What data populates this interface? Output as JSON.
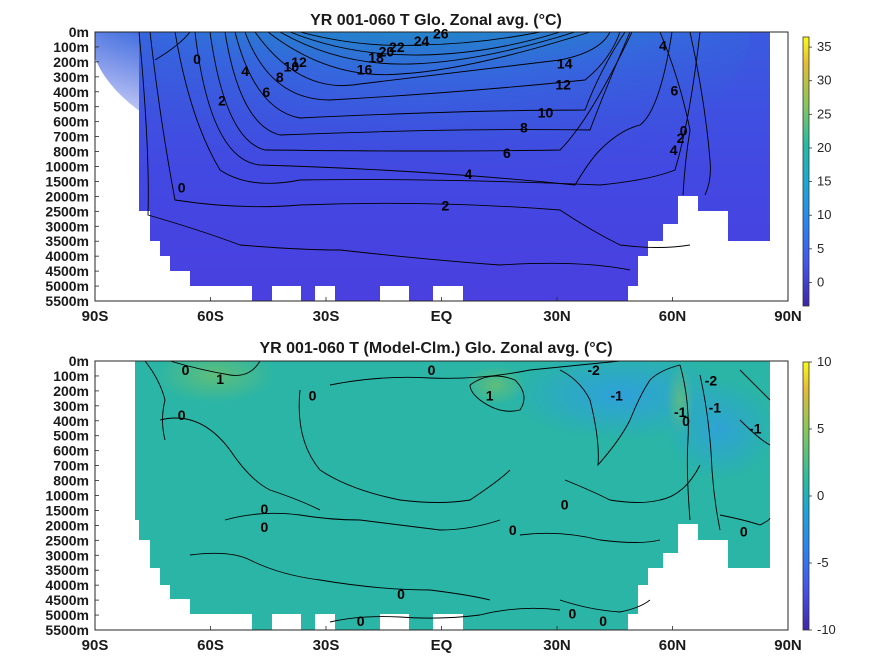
{
  "chart_data": [
    {
      "type": "heatmap",
      "title": "YR 001-060 T Glo. Zonal avg. (°C)",
      "depth_ticks": [
        "0m",
        "100m",
        "200m",
        "300m",
        "400m",
        "500m",
        "600m",
        "700m",
        "800m",
        "1000m",
        "1500m",
        "2000m",
        "2500m",
        "3000m",
        "3500m",
        "4000m",
        "4500m",
        "5000m",
        "5500m"
      ],
      "lat_ticks": [
        "90S",
        "60S",
        "30S",
        "EQ",
        "30N",
        "60N",
        "90N"
      ],
      "colorbar": {
        "ticks": [
          35,
          30,
          25,
          20,
          15,
          10,
          5,
          0
        ],
        "range": [
          -3.5,
          36.5
        ]
      },
      "contour_labels": [
        {
          "t": "0",
          "lat": -63.5,
          "d": 1.8
        },
        {
          "t": "4",
          "lat": -51,
          "d": 2.6
        },
        {
          "t": "2",
          "lat": -57,
          "d": 4.6
        },
        {
          "t": "6",
          "lat": -45.5,
          "d": 4
        },
        {
          "t": "8",
          "lat": -42,
          "d": 3
        },
        {
          "t": "10",
          "lat": -39,
          "d": 2.3
        },
        {
          "t": "12",
          "lat": -37,
          "d": 2
        },
        {
          "t": "16",
          "lat": -20,
          "d": 2.5
        },
        {
          "t": "18",
          "lat": -17,
          "d": 1.7
        },
        {
          "t": "20",
          "lat": -14.3,
          "d": 1.3
        },
        {
          "t": "22",
          "lat": -11.6,
          "d": 1.0
        },
        {
          "t": "24",
          "lat": -5.2,
          "d": 0.6
        },
        {
          "t": "26",
          "lat": -0.2,
          "d": 0.1
        },
        {
          "t": "14",
          "lat": 32,
          "d": 2.1
        },
        {
          "t": "12",
          "lat": 31.6,
          "d": 3.5
        },
        {
          "t": "10",
          "lat": 27,
          "d": 5.4
        },
        {
          "t": "8",
          "lat": 21.4,
          "d": 6.4
        },
        {
          "t": "6",
          "lat": 17,
          "d": 8.1
        },
        {
          "t": "4",
          "lat": 7,
          "d": 9.5
        },
        {
          "t": "2",
          "lat": 1,
          "d": 11.6
        },
        {
          "t": "0",
          "lat": -67.5,
          "d": 10.4
        },
        {
          "t": "4",
          "lat": 57.5,
          "d": 0.9
        },
        {
          "t": "6",
          "lat": 60.5,
          "d": 3.9
        },
        {
          "t": "0",
          "lat": 62.9,
          "d": 6.6
        },
        {
          "t": "2",
          "lat": 62.1,
          "d": 7.1
        },
        {
          "t": "4",
          "lat": 60.3,
          "d": 7.9
        }
      ]
    },
    {
      "type": "heatmap",
      "title": "YR 001-060 T (Model-Clm.) Glo. Zonal avg. (°C)",
      "depth_ticks": [
        "0m",
        "100m",
        "200m",
        "300m",
        "400m",
        "500m",
        "600m",
        "700m",
        "800m",
        "1000m",
        "1500m",
        "2000m",
        "2500m",
        "3000m",
        "3500m",
        "4000m",
        "4500m",
        "5000m",
        "5500m"
      ],
      "lat_ticks": [
        "90S",
        "60S",
        "30S",
        "EQ",
        "30N",
        "60N",
        "90N"
      ],
      "colorbar": {
        "ticks": [
          10,
          5,
          0,
          -5,
          -10
        ],
        "range": [
          -10,
          10
        ]
      },
      "contour_labels": [
        {
          "t": "0",
          "lat": -66.5,
          "d": 0.6
        },
        {
          "t": "1",
          "lat": -57.5,
          "d": 1.2
        },
        {
          "t": "0",
          "lat": -67.5,
          "d": 3.6
        },
        {
          "t": "0",
          "lat": -33.5,
          "d": 2.3
        },
        {
          "t": "0",
          "lat": -2.6,
          "d": 0.6
        },
        {
          "t": "1",
          "lat": 12.5,
          "d": 2.3
        },
        {
          "t": "-2",
          "lat": 39.5,
          "d": 0.6
        },
        {
          "t": "-1",
          "lat": 45.5,
          "d": 2.3
        },
        {
          "t": "-1",
          "lat": 62,
          "d": 3.4
        },
        {
          "t": "0",
          "lat": 63.5,
          "d": 4
        },
        {
          "t": "-2",
          "lat": 70,
          "d": 1.3
        },
        {
          "t": "-1",
          "lat": 71,
          "d": 3.1
        },
        {
          "t": "-1",
          "lat": 81.5,
          "d": 4.5
        },
        {
          "t": "0",
          "lat": -46,
          "d": 9.9
        },
        {
          "t": "0",
          "lat": -46,
          "d": 11.1
        },
        {
          "t": "0",
          "lat": 32,
          "d": 9.6
        },
        {
          "t": "0",
          "lat": 18.5,
          "d": 11.3
        },
        {
          "t": "0",
          "lat": 78.5,
          "d": 11.4
        },
        {
          "t": "0",
          "lat": -10.5,
          "d": 15.6
        },
        {
          "t": "0",
          "lat": -21,
          "d": 17.4
        },
        {
          "t": "0",
          "lat": 34,
          "d": 16.9
        },
        {
          "t": "0",
          "lat": 42,
          "d": 17.4
        }
      ]
    }
  ]
}
